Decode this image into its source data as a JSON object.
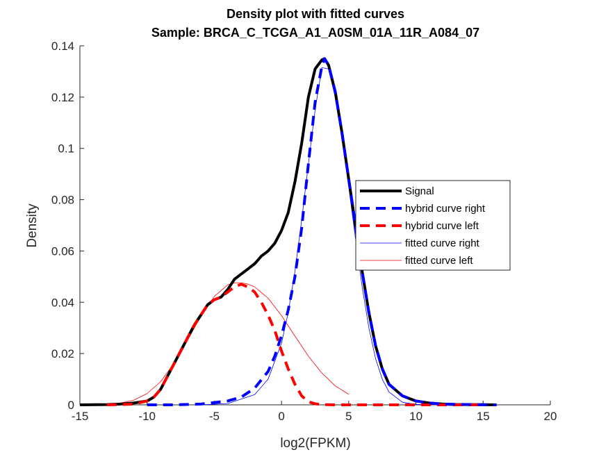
{
  "chart_data": {
    "type": "line",
    "title": "Density plot with fitted curves",
    "subtitle": "Sample: BRCA_C_TCGA_A1_A0SM_01A_11R_A084_07",
    "xlabel": "log2(FPKM)",
    "ylabel": "Density",
    "xlim": [
      -15,
      20
    ],
    "ylim": [
      0,
      0.14
    ],
    "xticks": [
      -15,
      -10,
      -5,
      0,
      5,
      10,
      15,
      20
    ],
    "yticks": [
      0,
      0.02,
      0.04,
      0.06,
      0.08,
      0.1,
      0.12,
      0.14
    ],
    "xtick_labels": [
      "-15",
      "-10",
      "-5",
      "0",
      "5",
      "10",
      "15",
      "20"
    ],
    "ytick_labels": [
      "0",
      "0.02",
      "0.04",
      "0.06",
      "0.08",
      "0.1",
      "0.12",
      "0.14"
    ],
    "grid": false,
    "legend_position": "center-right",
    "series": [
      {
        "name": "Signal",
        "color": "#000000",
        "style": "solid-thick",
        "x": [
          -15,
          -13,
          -12,
          -11,
          -10,
          -9.5,
          -9,
          -8.5,
          -8,
          -7.5,
          -7,
          -6.5,
          -6,
          -5.5,
          -5,
          -4.5,
          -4,
          -3.5,
          -3,
          -2.5,
          -2,
          -1.5,
          -1,
          -0.5,
          0,
          0.5,
          1,
          1.5,
          2,
          2.5,
          3,
          3.2,
          3.5,
          4,
          4.5,
          5,
          5.5,
          6,
          6.5,
          7,
          7.5,
          8,
          9,
          10,
          11,
          12,
          13,
          14,
          16
        ],
        "y": [
          0,
          0.0001,
          0.0003,
          0.0007,
          0.0015,
          0.003,
          0.006,
          0.011,
          0.016,
          0.021,
          0.026,
          0.031,
          0.035,
          0.039,
          0.041,
          0.042,
          0.045,
          0.049,
          0.051,
          0.053,
          0.055,
          0.058,
          0.06,
          0.063,
          0.068,
          0.075,
          0.087,
          0.102,
          0.12,
          0.131,
          0.1345,
          0.135,
          0.1325,
          0.122,
          0.106,
          0.088,
          0.07,
          0.052,
          0.036,
          0.023,
          0.014,
          0.008,
          0.0035,
          0.0015,
          0.0007,
          0.0003,
          0.0001,
          0.0001,
          0
        ]
      },
      {
        "name": "hybrid curve right",
        "color": "#0000ff",
        "style": "dashed-thick",
        "x": [
          -10,
          -8,
          -6,
          -4,
          -3,
          -2,
          -1,
          -0.5,
          0,
          0.5,
          1,
          1.5,
          2,
          2.5,
          3,
          3.2,
          3.5,
          4,
          4.5,
          5,
          5.5,
          6,
          6.5,
          7,
          7.5,
          8,
          9,
          10,
          11,
          12,
          14,
          16
        ],
        "y": [
          0,
          0,
          0.0003,
          0.0015,
          0.003,
          0.0065,
          0.013,
          0.019,
          0.027,
          0.037,
          0.05,
          0.069,
          0.094,
          0.118,
          0.132,
          0.135,
          0.1325,
          0.122,
          0.106,
          0.088,
          0.07,
          0.052,
          0.036,
          0.023,
          0.014,
          0.008,
          0.0035,
          0.0015,
          0.0007,
          0.0003,
          0.0001,
          0
        ]
      },
      {
        "name": "hybrid curve left",
        "color": "#ff0000",
        "style": "dashed-thick",
        "x": [
          -13,
          -12,
          -11,
          -10,
          -9.5,
          -9,
          -8.5,
          -8,
          -7.5,
          -7,
          -6.5,
          -6,
          -5.5,
          -5,
          -4.5,
          -4,
          -3.5,
          -3,
          -2.5,
          -2,
          -1.5,
          -1,
          -0.5,
          0,
          0.5,
          1,
          1.5,
          2,
          2.5,
          3,
          4,
          6,
          8,
          10,
          12,
          15
        ],
        "y": [
          0,
          0.0001,
          0.0003,
          0.0015,
          0.003,
          0.006,
          0.011,
          0.016,
          0.021,
          0.026,
          0.031,
          0.035,
          0.039,
          0.041,
          0.042,
          0.044,
          0.046,
          0.047,
          0.046,
          0.044,
          0.04,
          0.035,
          0.029,
          0.021,
          0.014,
          0.008,
          0.0035,
          0.0012,
          0.0004,
          0.0001,
          0,
          0,
          0,
          0,
          0,
          0
        ]
      },
      {
        "name": "fitted curve right",
        "color": "#0000ff",
        "style": "solid-thin",
        "x": [
          -6,
          -4,
          -2,
          -1,
          0,
          0.5,
          1,
          1.5,
          2,
          2.5,
          3,
          3.5,
          4,
          4.5,
          5,
          5.5,
          6,
          6.5,
          7,
          7.5,
          8,
          9,
          10,
          11
        ],
        "y": [
          0,
          0.0005,
          0.004,
          0.01,
          0.024,
          0.036,
          0.052,
          0.072,
          0.094,
          0.115,
          0.1315,
          0.131,
          0.12,
          0.104,
          0.085,
          0.065,
          0.046,
          0.03,
          0.018,
          0.01,
          0.005,
          0.001,
          0.0002,
          0
        ]
      },
      {
        "name": "fitted curve left",
        "color": "#ff0000",
        "style": "solid-thin",
        "x": [
          -15,
          -13,
          -12,
          -11,
          -10,
          -9,
          -8,
          -7,
          -6,
          -5,
          -4,
          -3.5,
          -3,
          -2.5,
          -2,
          -1,
          0,
          1,
          2,
          3,
          4,
          5
        ],
        "y": [
          0,
          0.0002,
          0.0007,
          0.0018,
          0.0044,
          0.009,
          0.0162,
          0.0251,
          0.0346,
          0.0423,
          0.0468,
          0.0475,
          0.0476,
          0.0471,
          0.046,
          0.0416,
          0.0348,
          0.0268,
          0.019,
          0.0124,
          0.0074,
          0.0041
        ]
      }
    ]
  }
}
